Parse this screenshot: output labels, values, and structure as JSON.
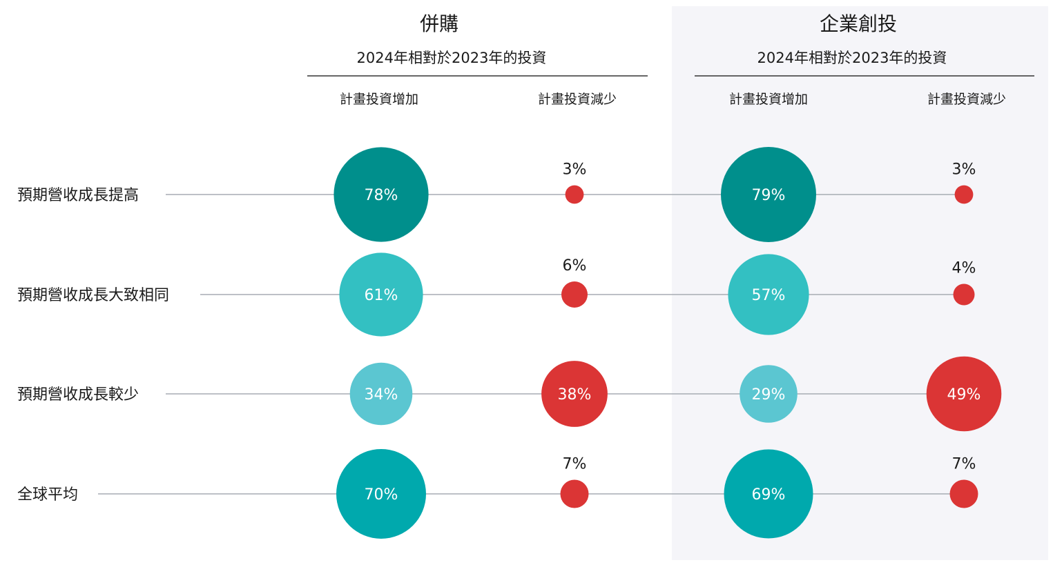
{
  "chart_data": {
    "type": "bubble",
    "groups": [
      {
        "title": "併購",
        "subtitle": "2024年相對於2023年的投資",
        "columns": [
          "計畫投資增加",
          "計畫投資減少"
        ]
      },
      {
        "title": "企業創投",
        "subtitle": "2024年相對於2023年的投資",
        "columns": [
          "計畫投資增加",
          "計畫投資減少"
        ]
      }
    ],
    "rows": [
      {
        "label": "預期營收成長提高",
        "values": [
          78,
          3,
          79,
          3
        ],
        "display": [
          "78%",
          "3%",
          "79%",
          "3%"
        ]
      },
      {
        "label": "預期營收成長大致相同",
        "values": [
          61,
          6,
          57,
          4
        ],
        "display": [
          "61%",
          "6%",
          "57%",
          "4%"
        ]
      },
      {
        "label": "預期營收成長較少",
        "values": [
          34,
          38,
          29,
          49
        ],
        "display": [
          "34%",
          "38%",
          "29%",
          "49%"
        ]
      },
      {
        "label": "全球平均",
        "values": [
          70,
          7,
          69,
          7
        ],
        "display": [
          "70%",
          "7%",
          "69%",
          "7%"
        ]
      }
    ],
    "colors": {
      "increase_by_row": [
        "#008f8c",
        "#33c0c2",
        "#5bc6d1",
        "#00a9ad"
      ],
      "decrease": "#db3535",
      "connector": "#a7abb3",
      "group_divider": "#333333",
      "panel_background": "#f5f5f9"
    }
  }
}
